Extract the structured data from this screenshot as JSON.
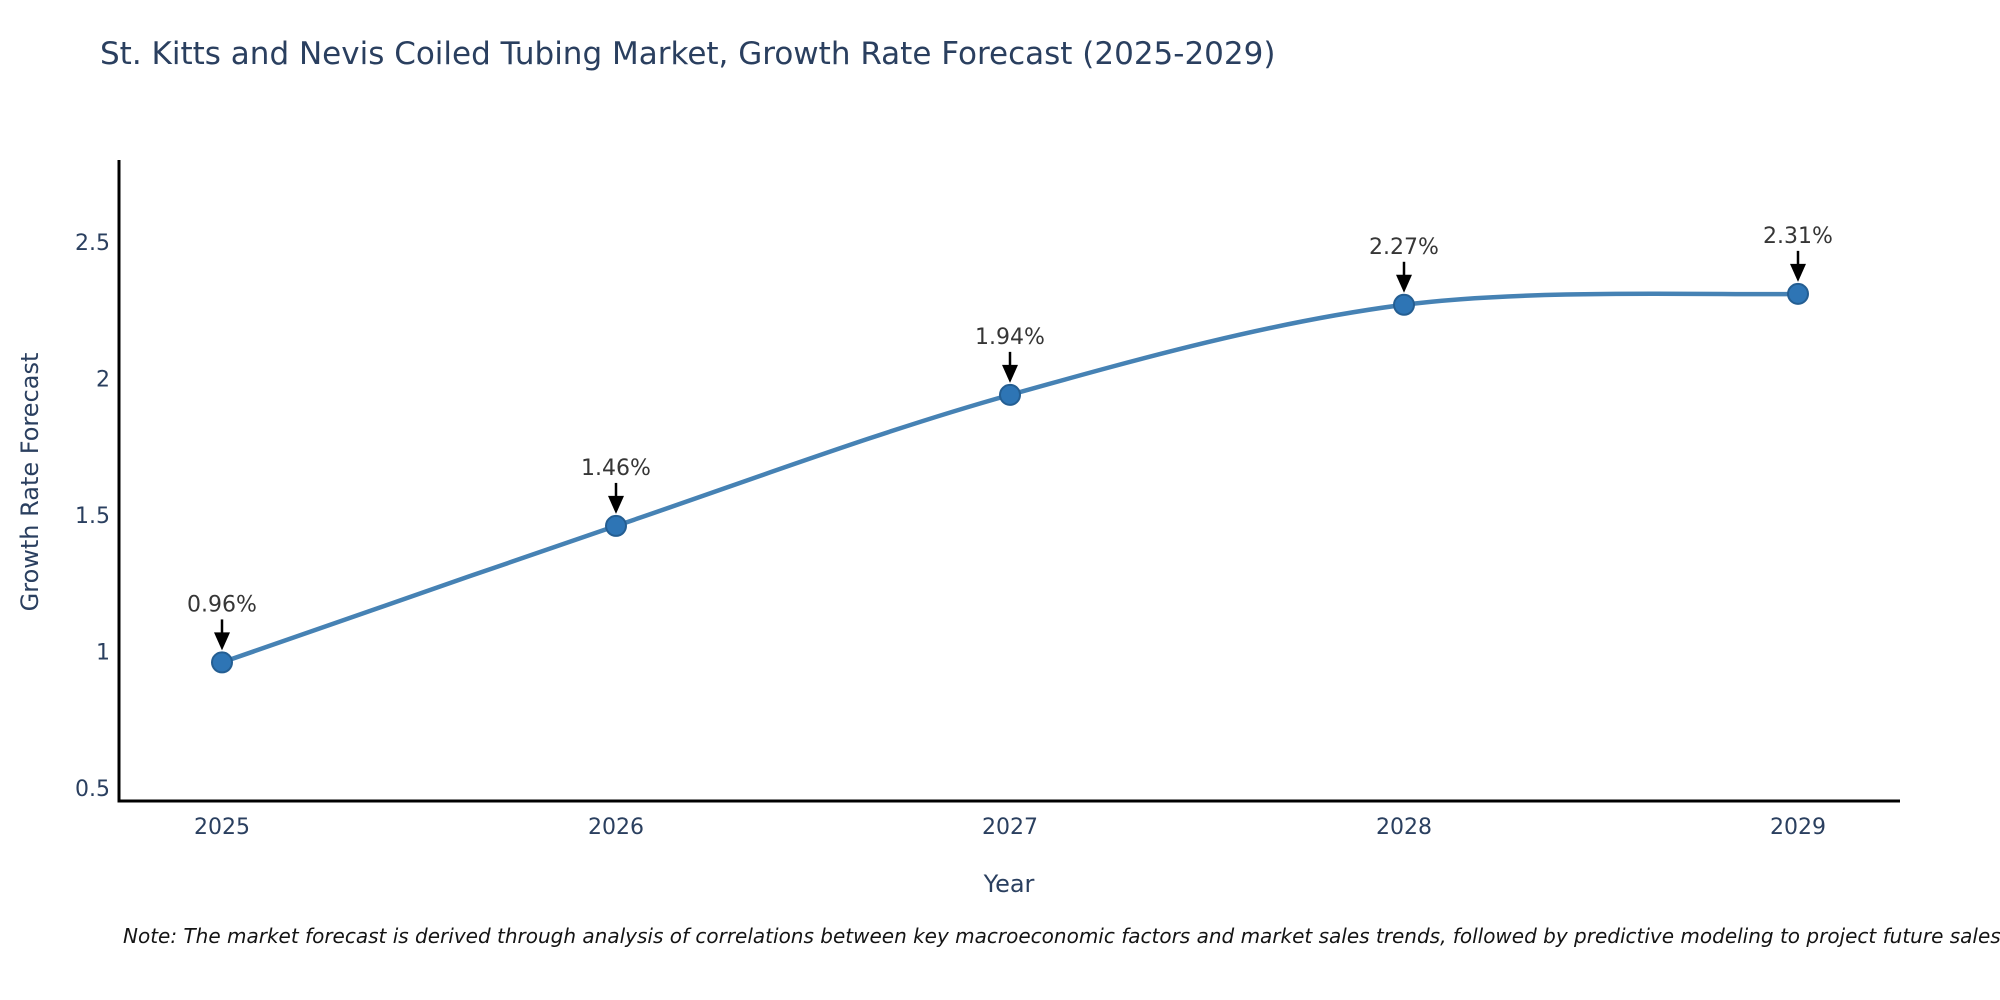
{
  "note": "Note: The market forecast is derived through analysis of correlations between key macroeconomic factors and market sales trends, followed by predictive modeling to project future sales",
  "chart_data": {
    "type": "line",
    "title": "St. Kitts and Nevis Coiled Tubing Market, Growth Rate Forecast (2025-2029)",
    "xlabel": "Year",
    "ylabel": "Growth Rate Forecast",
    "categories": [
      "2025",
      "2026",
      "2027",
      "2028",
      "2029"
    ],
    "series": [
      {
        "name": "Growth Rate Forecast",
        "values": [
          0.96,
          1.46,
          1.94,
          2.27,
          2.31
        ]
      }
    ],
    "point_labels": [
      "0.96%",
      "1.46%",
      "1.94%",
      "2.27%",
      "2.31%"
    ],
    "yticks": [
      0.5,
      1,
      1.5,
      2,
      2.5
    ],
    "ylim": [
      0.45,
      2.8
    ],
    "grid": false,
    "legend": "none",
    "annotation_style": "black-down-arrows",
    "colors": {
      "line": "#4682b4",
      "marker": "#2e75b5",
      "marker_edge": "#245e92",
      "axis": "#000000",
      "tick_text": "#2a3f5f",
      "title_text": "#2a3f5f",
      "annotation_text": "#363636",
      "annotation_arrow": "#000000"
    }
  }
}
